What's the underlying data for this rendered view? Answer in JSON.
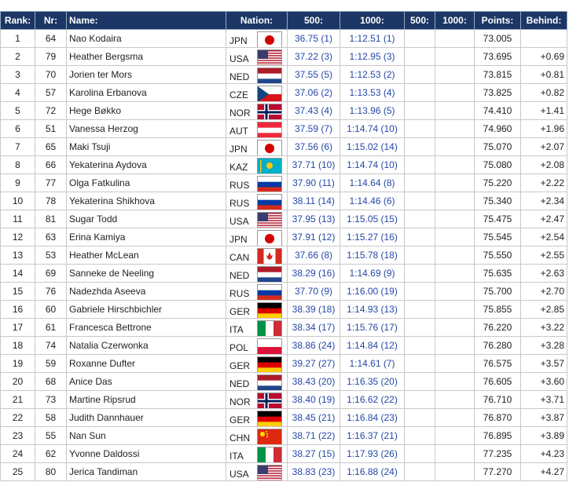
{
  "table": {
    "header": [
      "Rank:",
      "Nr:",
      "Name:",
      "Nation:",
      "500:",
      "1000:",
      "500:",
      "1000:",
      "Points:",
      "Behind:"
    ],
    "rows": [
      [
        1,
        64,
        "Nao Kodaira",
        "JPN",
        "36.75 (1)",
        "1:12.51 (1)",
        "73.005"
      ],
      [
        2,
        79,
        "Heather Bergsma",
        "USA",
        "37.22 (3)",
        "1:12.95 (3)",
        "73.695",
        "+0.69"
      ],
      [
        3,
        70,
        "Jorien ter Mors",
        "NED",
        "37.55 (5)",
        "1:12.53 (2)",
        "73.815",
        "+0.81"
      ],
      [
        4,
        57,
        "Karolina Erbanova",
        "CZE",
        "37.06 (2)",
        "1:13.53 (4)",
        "73.825",
        "+0.82"
      ],
      [
        5,
        72,
        "Hege Bøkko",
        "NOR",
        "37.43 (4)",
        "1:13.96 (5)",
        "74.410",
        "+1.41"
      ],
      [
        6,
        51,
        "Vanessa Herzog",
        "AUT",
        "37.59 (7)",
        "1:14.74 (10)",
        "74.960",
        "+1.96"
      ],
      [
        7,
        65,
        "Maki Tsuji",
        "JPN",
        "37.56 (6)",
        "1:15.02 (14)",
        "75.070",
        "+2.07"
      ],
      [
        8,
        66,
        "Yekaterina Aydova",
        "KAZ",
        "37.71 (10)",
        "1:14.74 (10)",
        "75.080",
        "+2.08"
      ],
      [
        9,
        77,
        "Olga Fatkulina",
        "RUS",
        "37.90 (11)",
        "1:14.64 (8)",
        "75.220",
        "+2.22"
      ],
      [
        10,
        78,
        "Yekaterina Shikhova",
        "RUS",
        "38.11 (14)",
        "1:14.46 (6)",
        "75.340",
        "+2.34"
      ],
      [
        11,
        81,
        "Sugar Todd",
        "USA",
        "37.95 (13)",
        "1:15.05 (15)",
        "75.475",
        "+2.47"
      ],
      [
        12,
        63,
        "Erina Kamiya",
        "JPN",
        "37.91 (12)",
        "1:15.27 (16)",
        "75.545",
        "+2.54"
      ],
      [
        13,
        53,
        "Heather McLean",
        "CAN",
        "37.66 (8)",
        "1:15.78 (18)",
        "75.550",
        "+2.55"
      ],
      [
        14,
        69,
        "Sanneke de Neeling",
        "NED",
        "38.29 (16)",
        "1:14.69 (9)",
        "75.635",
        "+2.63"
      ],
      [
        15,
        76,
        "Nadezhda Aseeva",
        "RUS",
        "37.70 (9)",
        "1:16.00 (19)",
        "75.700",
        "+2.70"
      ],
      [
        16,
        60,
        "Gabriele Hirschbichler",
        "GER",
        "38.39 (18)",
        "1:14.93 (13)",
        "75.855",
        "+2.85"
      ],
      [
        17,
        61,
        "Francesca Bettrone",
        "ITA",
        "38.34 (17)",
        "1:15.76 (17)",
        "76.220",
        "+3.22"
      ],
      [
        18,
        74,
        "Natalia Czerwonka",
        "POL",
        "38.86 (24)",
        "1:14.84 (12)",
        "76.280",
        "+3.28"
      ],
      [
        19,
        59,
        "Roxanne Dufter",
        "GER",
        "39.27 (27)",
        "1:14.61 (7)",
        "76.575",
        "+3.57"
      ],
      [
        20,
        68,
        "Anice Das",
        "NED",
        "38.43 (20)",
        "1:16.35 (20)",
        "76.605",
        "+3.60"
      ],
      [
        21,
        73,
        "Martine Ripsrud",
        "NOR",
        "38.40 (19)",
        "1:16.62 (22)",
        "76.710",
        "+3.71"
      ],
      [
        22,
        58,
        "Judith Dannhauer",
        "GER",
        "38.45 (21)",
        "1:16.84 (23)",
        "76.870",
        "+3.87"
      ],
      [
        23,
        55,
        "Nan Sun",
        "CHN",
        "38.71 (22)",
        "1:16.37 (21)",
        "76.895",
        "+3.89"
      ],
      [
        24,
        62,
        "Yvonne Daldossi",
        "ITA",
        "38.27 (15)",
        "1:17.93 (26)",
        "77.235",
        "+4.23"
      ],
      [
        25,
        80,
        "Jerica Tandiman",
        "USA",
        "38.83 (23)",
        "1:16.88 (24)",
        "77.270",
        "+4.27"
      ]
    ]
  }
}
